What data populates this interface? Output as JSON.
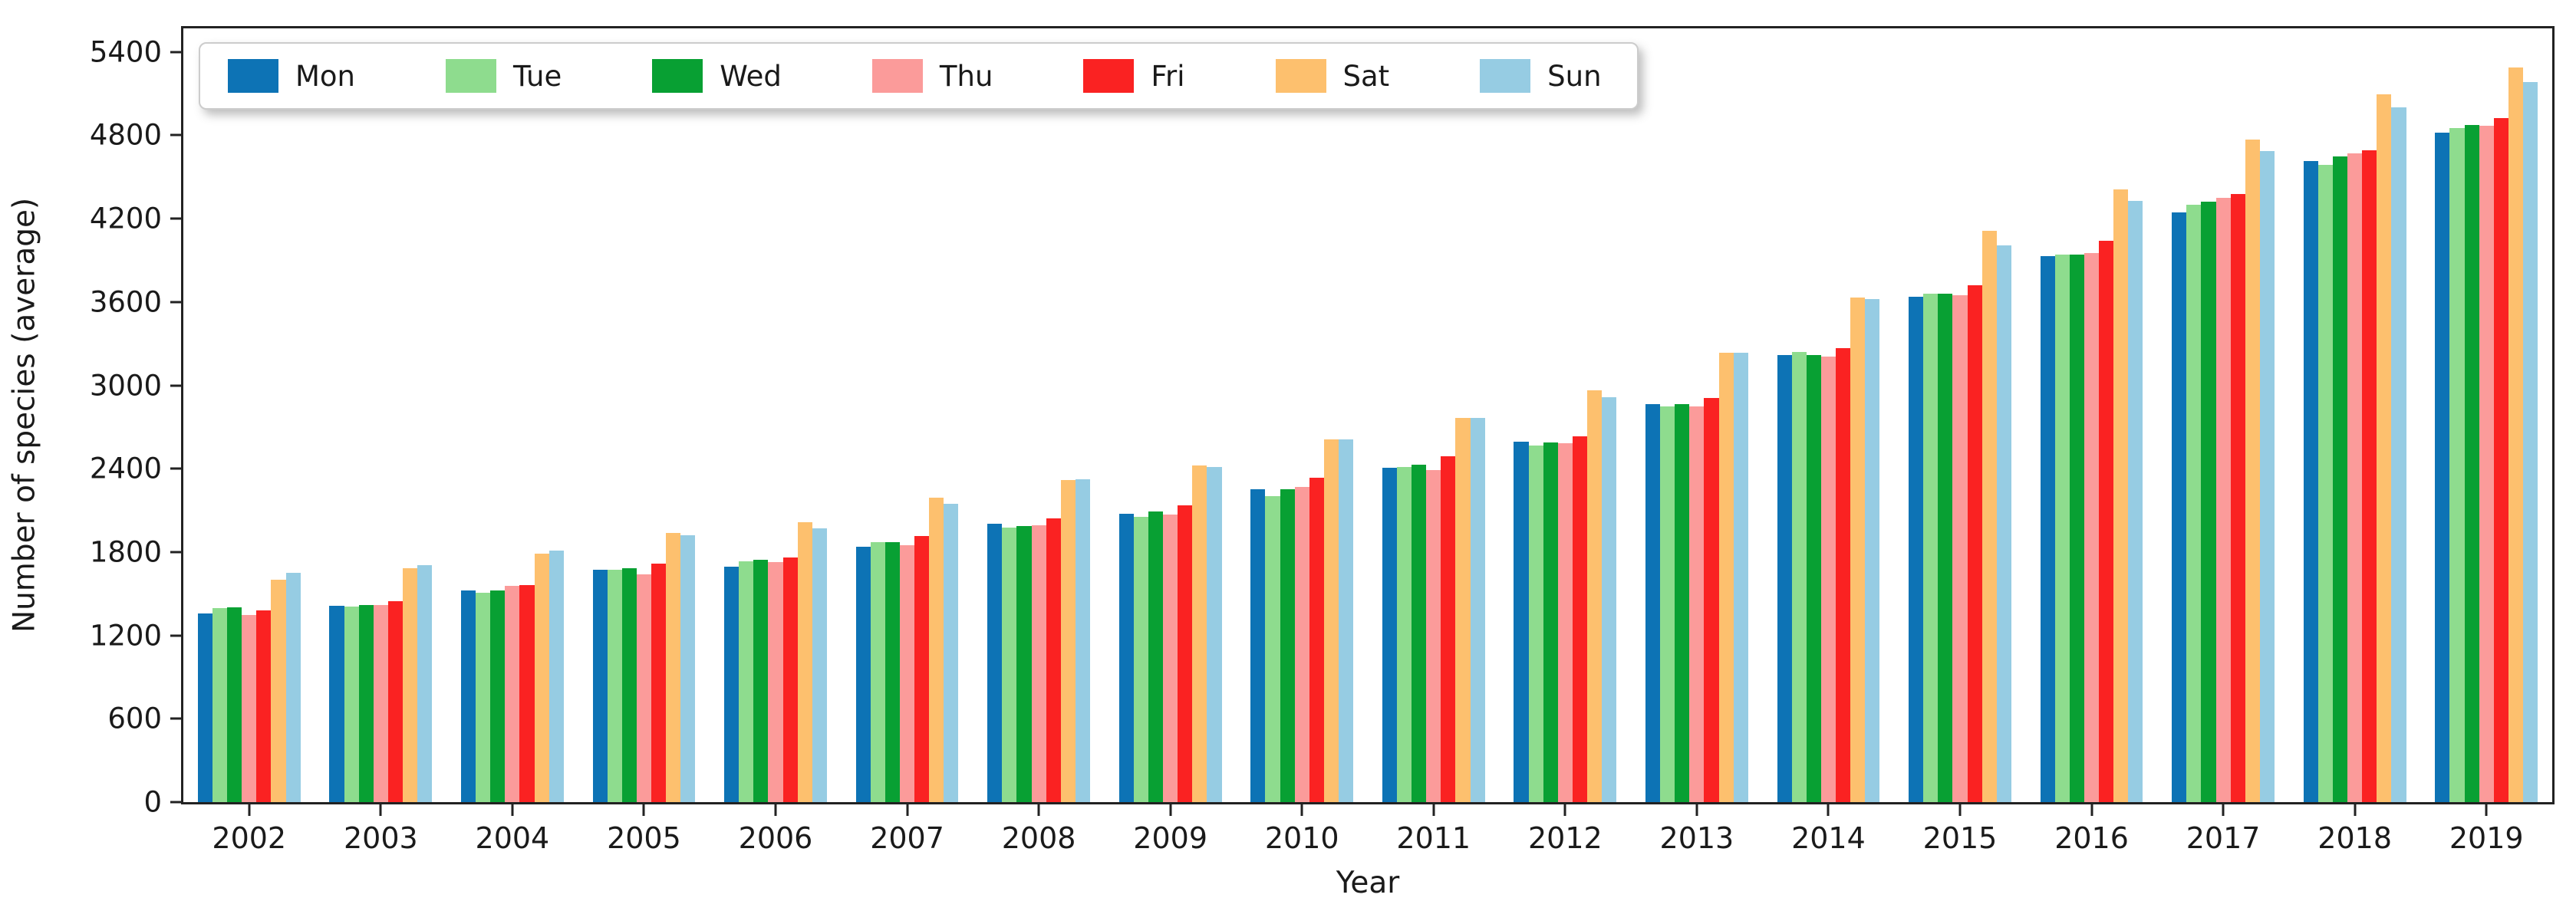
{
  "figure": {
    "background": "#ffffff",
    "axis_color": "#222222",
    "text_color": "#1a1a1a"
  },
  "chart_data": {
    "type": "bar",
    "title": "",
    "xlabel": "Year",
    "ylabel": "Number of species (average)",
    "grid": false,
    "legend_position": "top-left-horizontal-inside",
    "ylim": [
      0,
      5570
    ],
    "yticks": [
      0,
      600,
      1200,
      1800,
      2400,
      3000,
      3600,
      4200,
      4800,
      5400
    ],
    "categories": [
      "2002",
      "2003",
      "2004",
      "2005",
      "2006",
      "2007",
      "2008",
      "2009",
      "2010",
      "2011",
      "2012",
      "2013",
      "2014",
      "2015",
      "2016",
      "2017",
      "2018",
      "2019"
    ],
    "series": [
      {
        "name": "Mon",
        "color": "#0d73b5",
        "values": [
          1360,
          1415,
          1525,
          1675,
          1695,
          1840,
          2005,
          2075,
          2255,
          2405,
          2595,
          2865,
          3220,
          3640,
          3930,
          4245,
          4615,
          4820
        ]
      },
      {
        "name": "Tue",
        "color": "#8edc8e",
        "values": [
          1395,
          1410,
          1505,
          1670,
          1735,
          1870,
          1975,
          2055,
          2205,
          2415,
          2565,
          2850,
          3240,
          3660,
          3940,
          4300,
          4590,
          4850
        ]
      },
      {
        "name": "Wed",
        "color": "#08a033",
        "values": [
          1400,
          1420,
          1525,
          1685,
          1745,
          1870,
          1985,
          2090,
          2255,
          2430,
          2590,
          2865,
          3220,
          3660,
          3940,
          4320,
          4650,
          4875
        ]
      },
      {
        "name": "Thu",
        "color": "#fb9b9a",
        "values": [
          1345,
          1420,
          1555,
          1640,
          1730,
          1850,
          1995,
          2070,
          2270,
          2390,
          2585,
          2850,
          3210,
          3650,
          3950,
          4350,
          4670,
          4870
        ]
      },
      {
        "name": "Fri",
        "color": "#fa2222",
        "values": [
          1380,
          1445,
          1560,
          1715,
          1760,
          1915,
          2045,
          2135,
          2335,
          2490,
          2635,
          2910,
          3270,
          3720,
          4040,
          4375,
          4695,
          4925
        ]
      },
      {
        "name": "Sat",
        "color": "#fdc06e",
        "values": [
          1600,
          1685,
          1790,
          1935,
          2015,
          2190,
          2320,
          2425,
          2610,
          2765,
          2965,
          3235,
          3630,
          4110,
          4410,
          4770,
          5095,
          5290
        ]
      },
      {
        "name": "Sun",
        "color": "#96cce3",
        "values": [
          1650,
          1705,
          1810,
          1920,
          1970,
          2150,
          2325,
          2415,
          2610,
          2765,
          2915,
          3235,
          3620,
          4010,
          4330,
          4685,
          5000,
          5185
        ]
      }
    ],
    "bar_group_fraction": 0.78
  }
}
